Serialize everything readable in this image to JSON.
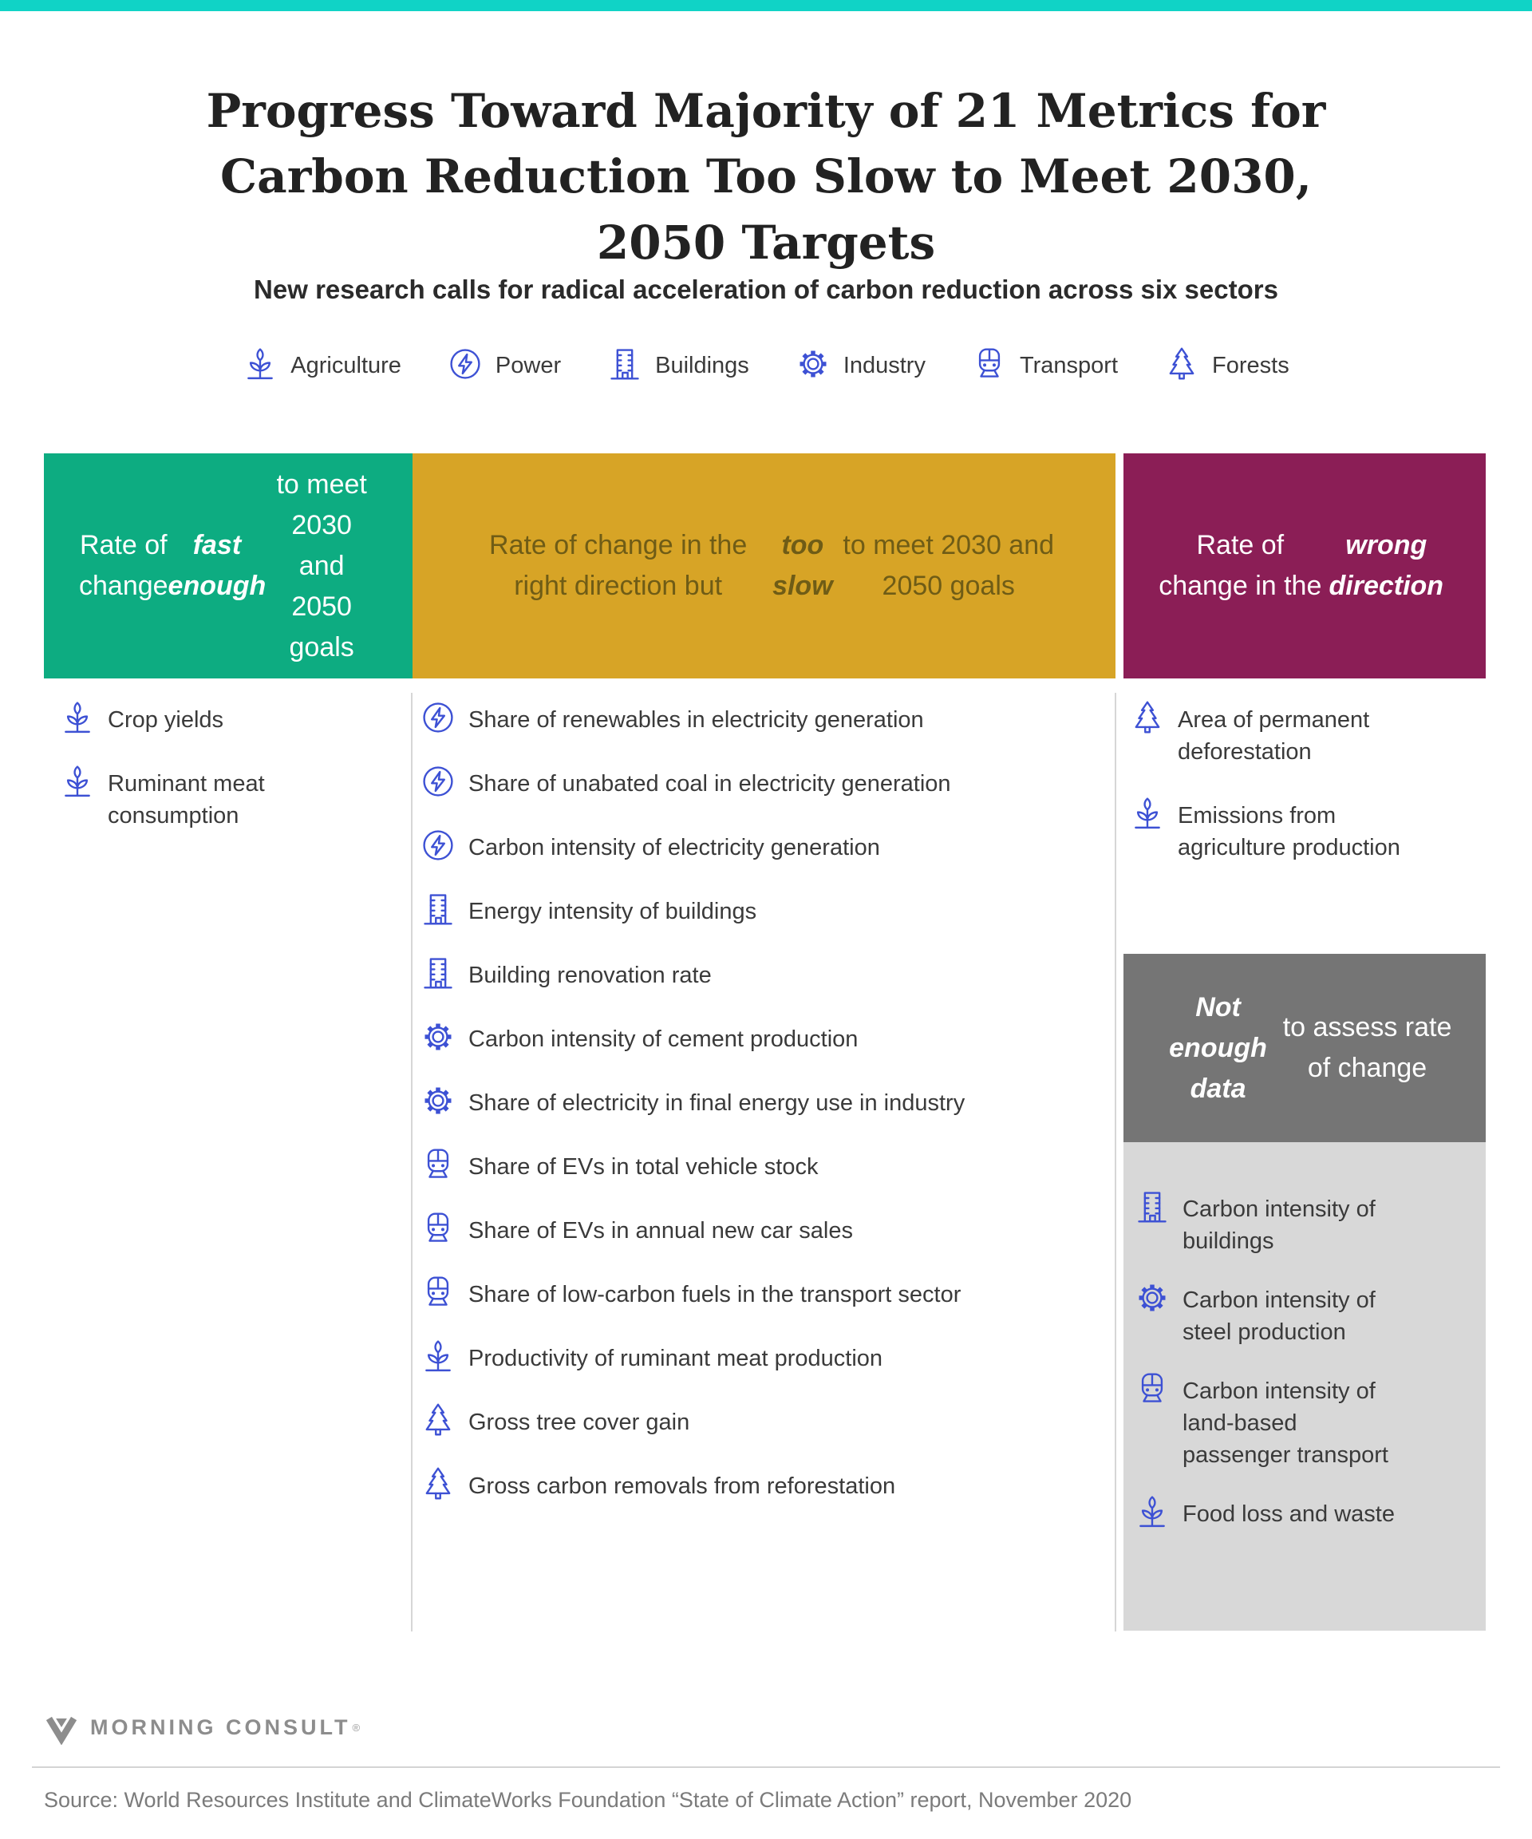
{
  "page": {
    "title": "Progress Toward Majority of 21 Metrics for Carbon Reduction Too Slow to Meet 2030, 2050 Targets",
    "subtitle": "New research calls for radical acceleration of carbon reduction across six sectors",
    "colors": {
      "accent_bar": "#10d3c6",
      "icon": "#3d51d4"
    }
  },
  "sectors": [
    {
      "icon": "agriculture",
      "label": "Agriculture"
    },
    {
      "icon": "power",
      "label": "Power"
    },
    {
      "icon": "buildings",
      "label": "Buildings"
    },
    {
      "icon": "industry",
      "label": "Industry"
    },
    {
      "icon": "transport",
      "label": "Transport"
    },
    {
      "icon": "forests",
      "label": "Forests"
    }
  ],
  "columns": [
    {
      "header": {
        "color": "#0dac81",
        "text_color": "#ffffff",
        "parts": [
          {
            "text": "Rate of change "
          },
          {
            "text": "fast enough",
            "em": true
          },
          {
            "text": " to meet 2030 and 2050 goals"
          }
        ]
      },
      "items": [
        {
          "icon": "agriculture",
          "label": "Crop yields"
        },
        {
          "icon": "agriculture",
          "label": "Ruminant meat consumption"
        }
      ]
    },
    {
      "header": {
        "color": "#d7a426",
        "text_color": "#6f5c16",
        "parts": [
          {
            "text": "Rate of change in the right direction but "
          },
          {
            "text": "too slow",
            "em": true
          },
          {
            "text": " to meet 2030 and 2050 goals"
          }
        ]
      },
      "items": [
        {
          "icon": "power",
          "label": "Share of renewables in electricity generation"
        },
        {
          "icon": "power",
          "label": "Share of unabated coal in electricity generation"
        },
        {
          "icon": "power",
          "label": "Carbon intensity of electricity generation"
        },
        {
          "icon": "buildings",
          "label": "Energy intensity of buildings"
        },
        {
          "icon": "buildings",
          "label": "Building renovation rate"
        },
        {
          "icon": "industry",
          "label": "Carbon intensity of cement production"
        },
        {
          "icon": "industry",
          "label": "Share of electricity in final energy use in industry"
        },
        {
          "icon": "transport",
          "label": "Share of EVs in total vehicle stock"
        },
        {
          "icon": "transport",
          "label": "Share of EVs in annual new car sales"
        },
        {
          "icon": "transport",
          "label": "Share of low-carbon fuels in the transport sector"
        },
        {
          "icon": "agriculture",
          "label": "Productivity of ruminant meat production"
        },
        {
          "icon": "forests",
          "label": "Gross tree cover gain"
        },
        {
          "icon": "forests",
          "label": "Gross carbon removals from reforestation"
        }
      ]
    },
    {
      "header": {
        "color": "#8b1e56",
        "text_color": "#ffffff",
        "parts": [
          {
            "text": "Rate of change in the "
          },
          {
            "text": "wrong direction",
            "em": true
          }
        ]
      },
      "items": [
        {
          "icon": "forests",
          "label": "Area of permanent deforestation"
        },
        {
          "icon": "agriculture",
          "label": "Emissions from agriculture production"
        }
      ],
      "subsection": {
        "header": {
          "color": "#757575",
          "text_color": "#ffffff",
          "parts": [
            {
              "text": "Not enough data",
              "em": true
            },
            {
              "text": " to assess rate of change"
            }
          ]
        },
        "panel_color": "#d8d8d8",
        "items": [
          {
            "icon": "buildings",
            "label": "Carbon intensity of buildings"
          },
          {
            "icon": "industry",
            "label": "Carbon intensity of steel production"
          },
          {
            "icon": "transport",
            "label": "Carbon intensity of land-based passenger transport"
          },
          {
            "icon": "agriculture",
            "label": "Food loss and waste"
          }
        ]
      }
    }
  ],
  "footer": {
    "logo_text": "MORNING CONSULT",
    "logo_mark": "®",
    "source": "Source: World Resources Institute and ClimateWorks Foundation “State of Climate Action” report, November 2020"
  }
}
